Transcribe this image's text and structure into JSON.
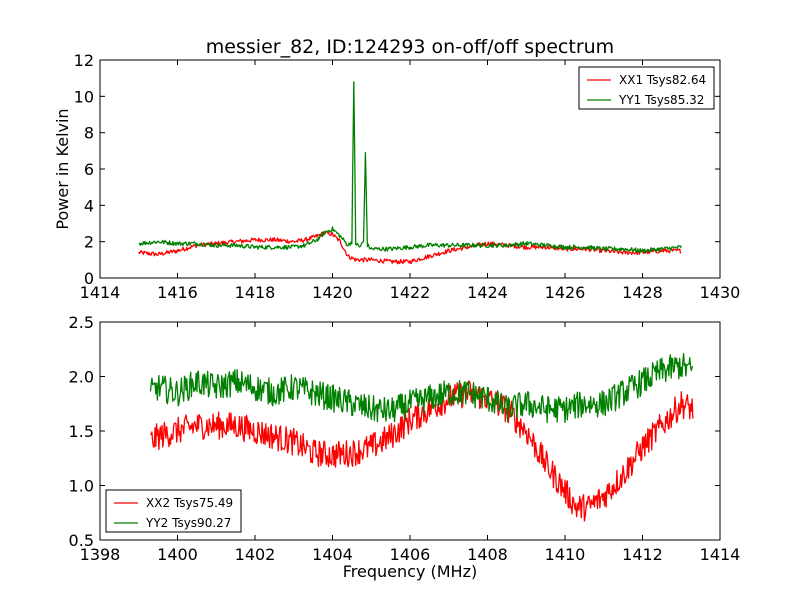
{
  "title": "messier_82, ID:124293 on-off/off spectrum",
  "chart_data": [
    {
      "type": "line",
      "title": "messier_82, ID:124293 on-off/off spectrum",
      "xlabel": "",
      "ylabel": "Power in Kelvin",
      "xlim": [
        1414,
        1430
      ],
      "ylim": [
        0,
        12
      ],
      "xticks": [
        "1414",
        "1416",
        "1418",
        "1420",
        "1422",
        "1424",
        "1426",
        "1428",
        "1430"
      ],
      "yticks": [
        "0",
        "2",
        "4",
        "6",
        "8",
        "10",
        "12"
      ],
      "legend_position": "top-right",
      "series": [
        {
          "name": "XX1 Tsys82.64",
          "color": "#ff0000",
          "x": [
            1415.0,
            1415.5,
            1416.0,
            1416.5,
            1417.0,
            1417.5,
            1418.0,
            1418.5,
            1419.0,
            1419.3,
            1419.6,
            1419.8,
            1420.0,
            1420.2,
            1420.4,
            1420.6,
            1420.8,
            1421.0,
            1421.5,
            1422.0,
            1422.5,
            1423.0,
            1423.5,
            1424.0,
            1424.5,
            1425.0,
            1425.5,
            1426.0,
            1426.5,
            1427.0,
            1427.5,
            1428.0,
            1428.5,
            1429.0
          ],
          "y": [
            1.4,
            1.3,
            1.5,
            1.8,
            1.9,
            2.0,
            2.1,
            2.1,
            2.0,
            2.1,
            2.3,
            2.5,
            2.4,
            2.0,
            1.2,
            1.0,
            1.0,
            1.0,
            0.9,
            0.9,
            1.2,
            1.5,
            1.7,
            1.9,
            1.8,
            1.7,
            1.7,
            1.6,
            1.6,
            1.5,
            1.4,
            1.4,
            1.5,
            1.5
          ]
        },
        {
          "name": "YY1 Tsys85.32",
          "color": "#008000",
          "x": [
            1415.0,
            1415.5,
            1416.0,
            1416.5,
            1417.0,
            1417.5,
            1418.0,
            1418.5,
            1419.0,
            1419.3,
            1419.6,
            1419.8,
            1420.0,
            1420.2,
            1420.4,
            1420.5,
            1420.55,
            1420.6,
            1420.7,
            1420.8,
            1420.85,
            1420.9,
            1421.0,
            1421.5,
            1422.0,
            1422.5,
            1423.0,
            1423.5,
            1424.0,
            1424.5,
            1425.0,
            1425.5,
            1426.0,
            1426.5,
            1427.0,
            1427.5,
            1428.0,
            1428.5,
            1429.0
          ],
          "y": [
            1.9,
            2.0,
            1.9,
            1.9,
            1.8,
            1.8,
            1.7,
            1.7,
            1.7,
            1.8,
            2.1,
            2.5,
            2.7,
            2.3,
            1.8,
            2.0,
            10.8,
            1.9,
            1.7,
            2.0,
            6.9,
            1.8,
            1.6,
            1.6,
            1.7,
            1.8,
            1.8,
            1.8,
            1.8,
            1.8,
            1.9,
            1.8,
            1.7,
            1.7,
            1.6,
            1.6,
            1.5,
            1.6,
            1.7
          ]
        }
      ]
    },
    {
      "type": "line",
      "title": "",
      "xlabel": "Frequency (MHz)",
      "ylabel": "",
      "xlim": [
        1398,
        1414
      ],
      "ylim": [
        0.5,
        2.5
      ],
      "xticks": [
        "1398",
        "1400",
        "1402",
        "1404",
        "1406",
        "1408",
        "1410",
        "1412",
        "1414"
      ],
      "yticks": [
        "0.5",
        "1.0",
        "1.5",
        "2.0",
        "2.5"
      ],
      "legend_position": "lower-left",
      "series": [
        {
          "name": "XX2 Tsys75.49",
          "color": "#ff0000",
          "x": [
            1399.3,
            1399.5,
            1400.0,
            1400.5,
            1401.0,
            1401.5,
            1402.0,
            1402.5,
            1403.0,
            1403.5,
            1404.0,
            1404.5,
            1405.0,
            1405.5,
            1406.0,
            1406.5,
            1407.0,
            1407.5,
            1408.0,
            1408.5,
            1409.0,
            1409.5,
            1410.0,
            1410.3,
            1410.6,
            1411.0,
            1411.5,
            1412.0,
            1412.5,
            1413.0,
            1413.3
          ],
          "y": [
            1.4,
            1.45,
            1.5,
            1.55,
            1.55,
            1.55,
            1.5,
            1.45,
            1.4,
            1.3,
            1.28,
            1.3,
            1.35,
            1.45,
            1.6,
            1.7,
            1.8,
            1.85,
            1.8,
            1.7,
            1.5,
            1.2,
            0.95,
            0.8,
            0.8,
            0.9,
            1.1,
            1.35,
            1.55,
            1.75,
            1.7
          ]
        },
        {
          "name": "YY2 Tsys90.27",
          "color": "#008000",
          "x": [
            1399.3,
            1399.5,
            1400.0,
            1400.5,
            1401.0,
            1401.5,
            1402.0,
            1402.5,
            1403.0,
            1403.5,
            1404.0,
            1404.5,
            1405.0,
            1405.5,
            1406.0,
            1406.5,
            1407.0,
            1407.5,
            1408.0,
            1408.5,
            1409.0,
            1409.5,
            1410.0,
            1410.5,
            1411.0,
            1411.5,
            1412.0,
            1412.5,
            1413.0,
            1413.3
          ],
          "y": [
            1.85,
            1.9,
            1.85,
            1.95,
            1.9,
            1.95,
            1.9,
            1.85,
            1.9,
            1.85,
            1.8,
            1.75,
            1.7,
            1.68,
            1.75,
            1.8,
            1.85,
            1.85,
            1.8,
            1.7,
            1.75,
            1.7,
            1.7,
            1.75,
            1.75,
            1.85,
            1.95,
            2.05,
            2.1,
            2.05
          ]
        }
      ]
    }
  ]
}
